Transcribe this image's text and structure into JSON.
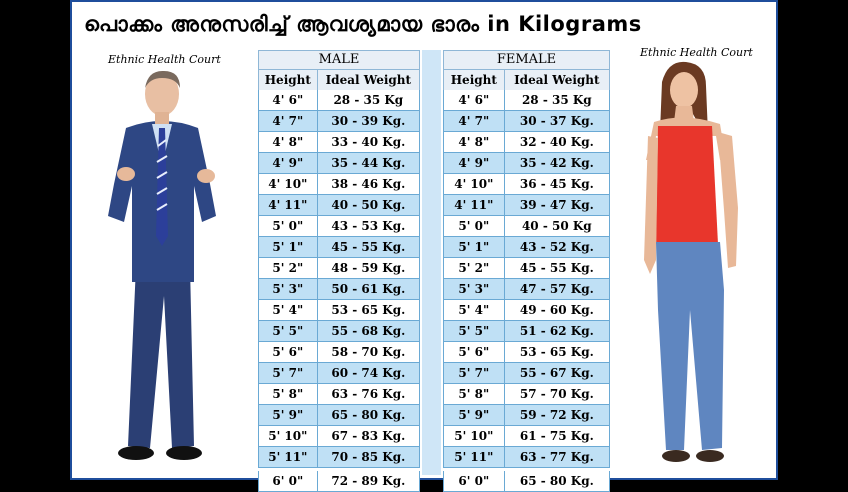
{
  "title": "പൊക്കം അനുസരിച്ച് ആവശ്യമായ ഭാരം  in Kilograms",
  "credit_left": "Ethnic Health Court",
  "credit_right": "Ethnic Health Court",
  "male": {
    "header": "MALE",
    "col_height": "Height",
    "col_weight": "Ideal Weight",
    "rows": [
      [
        "4' 6\"",
        "28 - 35 Kg"
      ],
      [
        "4' 7\"",
        "30 - 39 Kg."
      ],
      [
        "4' 8\"",
        "33 - 40 Kg."
      ],
      [
        "4' 9\"",
        "35 - 44 Kg."
      ],
      [
        "4' 10\"",
        "38 - 46 Kg."
      ],
      [
        "4' 11\"",
        "40 - 50 Kg."
      ],
      [
        "5' 0\"",
        "43 - 53 Kg."
      ],
      [
        "5' 1\"",
        "45 - 55 Kg."
      ],
      [
        "5' 2\"",
        "48 - 59 Kg."
      ],
      [
        "5' 3\"",
        "50 - 61 Kg."
      ],
      [
        "5' 4\"",
        "53 - 65 Kg."
      ],
      [
        "5' 5\"",
        "55 - 68 Kg."
      ],
      [
        "5' 6\"",
        "58 - 70 Kg."
      ],
      [
        "5' 7\"",
        "60 - 74 Kg."
      ],
      [
        "5' 8\"",
        "63 - 76 Kg."
      ],
      [
        "5' 9\"",
        "65 - 80 Kg."
      ],
      [
        "5' 10\"",
        "67 - 83 Kg."
      ],
      [
        "5' 11\"",
        "70 - 85 Kg."
      ],
      [
        "6' 0\"",
        "72 - 89 Kg."
      ]
    ]
  },
  "female": {
    "header": "FEMALE",
    "col_height": "Height",
    "col_weight": "Ideal Weight",
    "rows": [
      [
        "4' 6\"",
        "28 - 35 Kg"
      ],
      [
        "4' 7\"",
        "30 - 37 Kg."
      ],
      [
        "4' 8\"",
        "32 - 40 Kg."
      ],
      [
        "4' 9\"",
        "35 - 42 Kg."
      ],
      [
        "4' 10\"",
        "36 - 45 Kg."
      ],
      [
        "4' 11\"",
        "39 - 47 Kg."
      ],
      [
        "5' 0\"",
        "40 - 50 Kg"
      ],
      [
        "5' 1\"",
        "43 - 52 Kg."
      ],
      [
        "5' 2\"",
        "45 - 55 Kg."
      ],
      [
        "5' 3\"",
        "47 - 57 Kg."
      ],
      [
        "5' 4\"",
        "49 - 60 Kg."
      ],
      [
        "5' 5\"",
        "51 - 62 Kg."
      ],
      [
        "5' 6\"",
        "53 - 65 Kg."
      ],
      [
        "5' 7\"",
        "55 - 67 Kg."
      ],
      [
        "5' 8\"",
        "57 - 70 Kg."
      ],
      [
        "5' 9\"",
        "59 - 72 Kg."
      ],
      [
        "5' 10\"",
        "61 - 75 Kg."
      ],
      [
        "5' 11\"",
        "63 - 77 Kg."
      ],
      [
        "6' 0\"",
        "65 - 80 Kg."
      ]
    ]
  },
  "colors": {
    "row_alt": "#bfe0f5",
    "border": "#6aa9d4",
    "frame": "#1f4e9c"
  },
  "icons": {
    "man": "man-in-suit-illustration",
    "woman": "woman-in-red-top-illustration"
  }
}
